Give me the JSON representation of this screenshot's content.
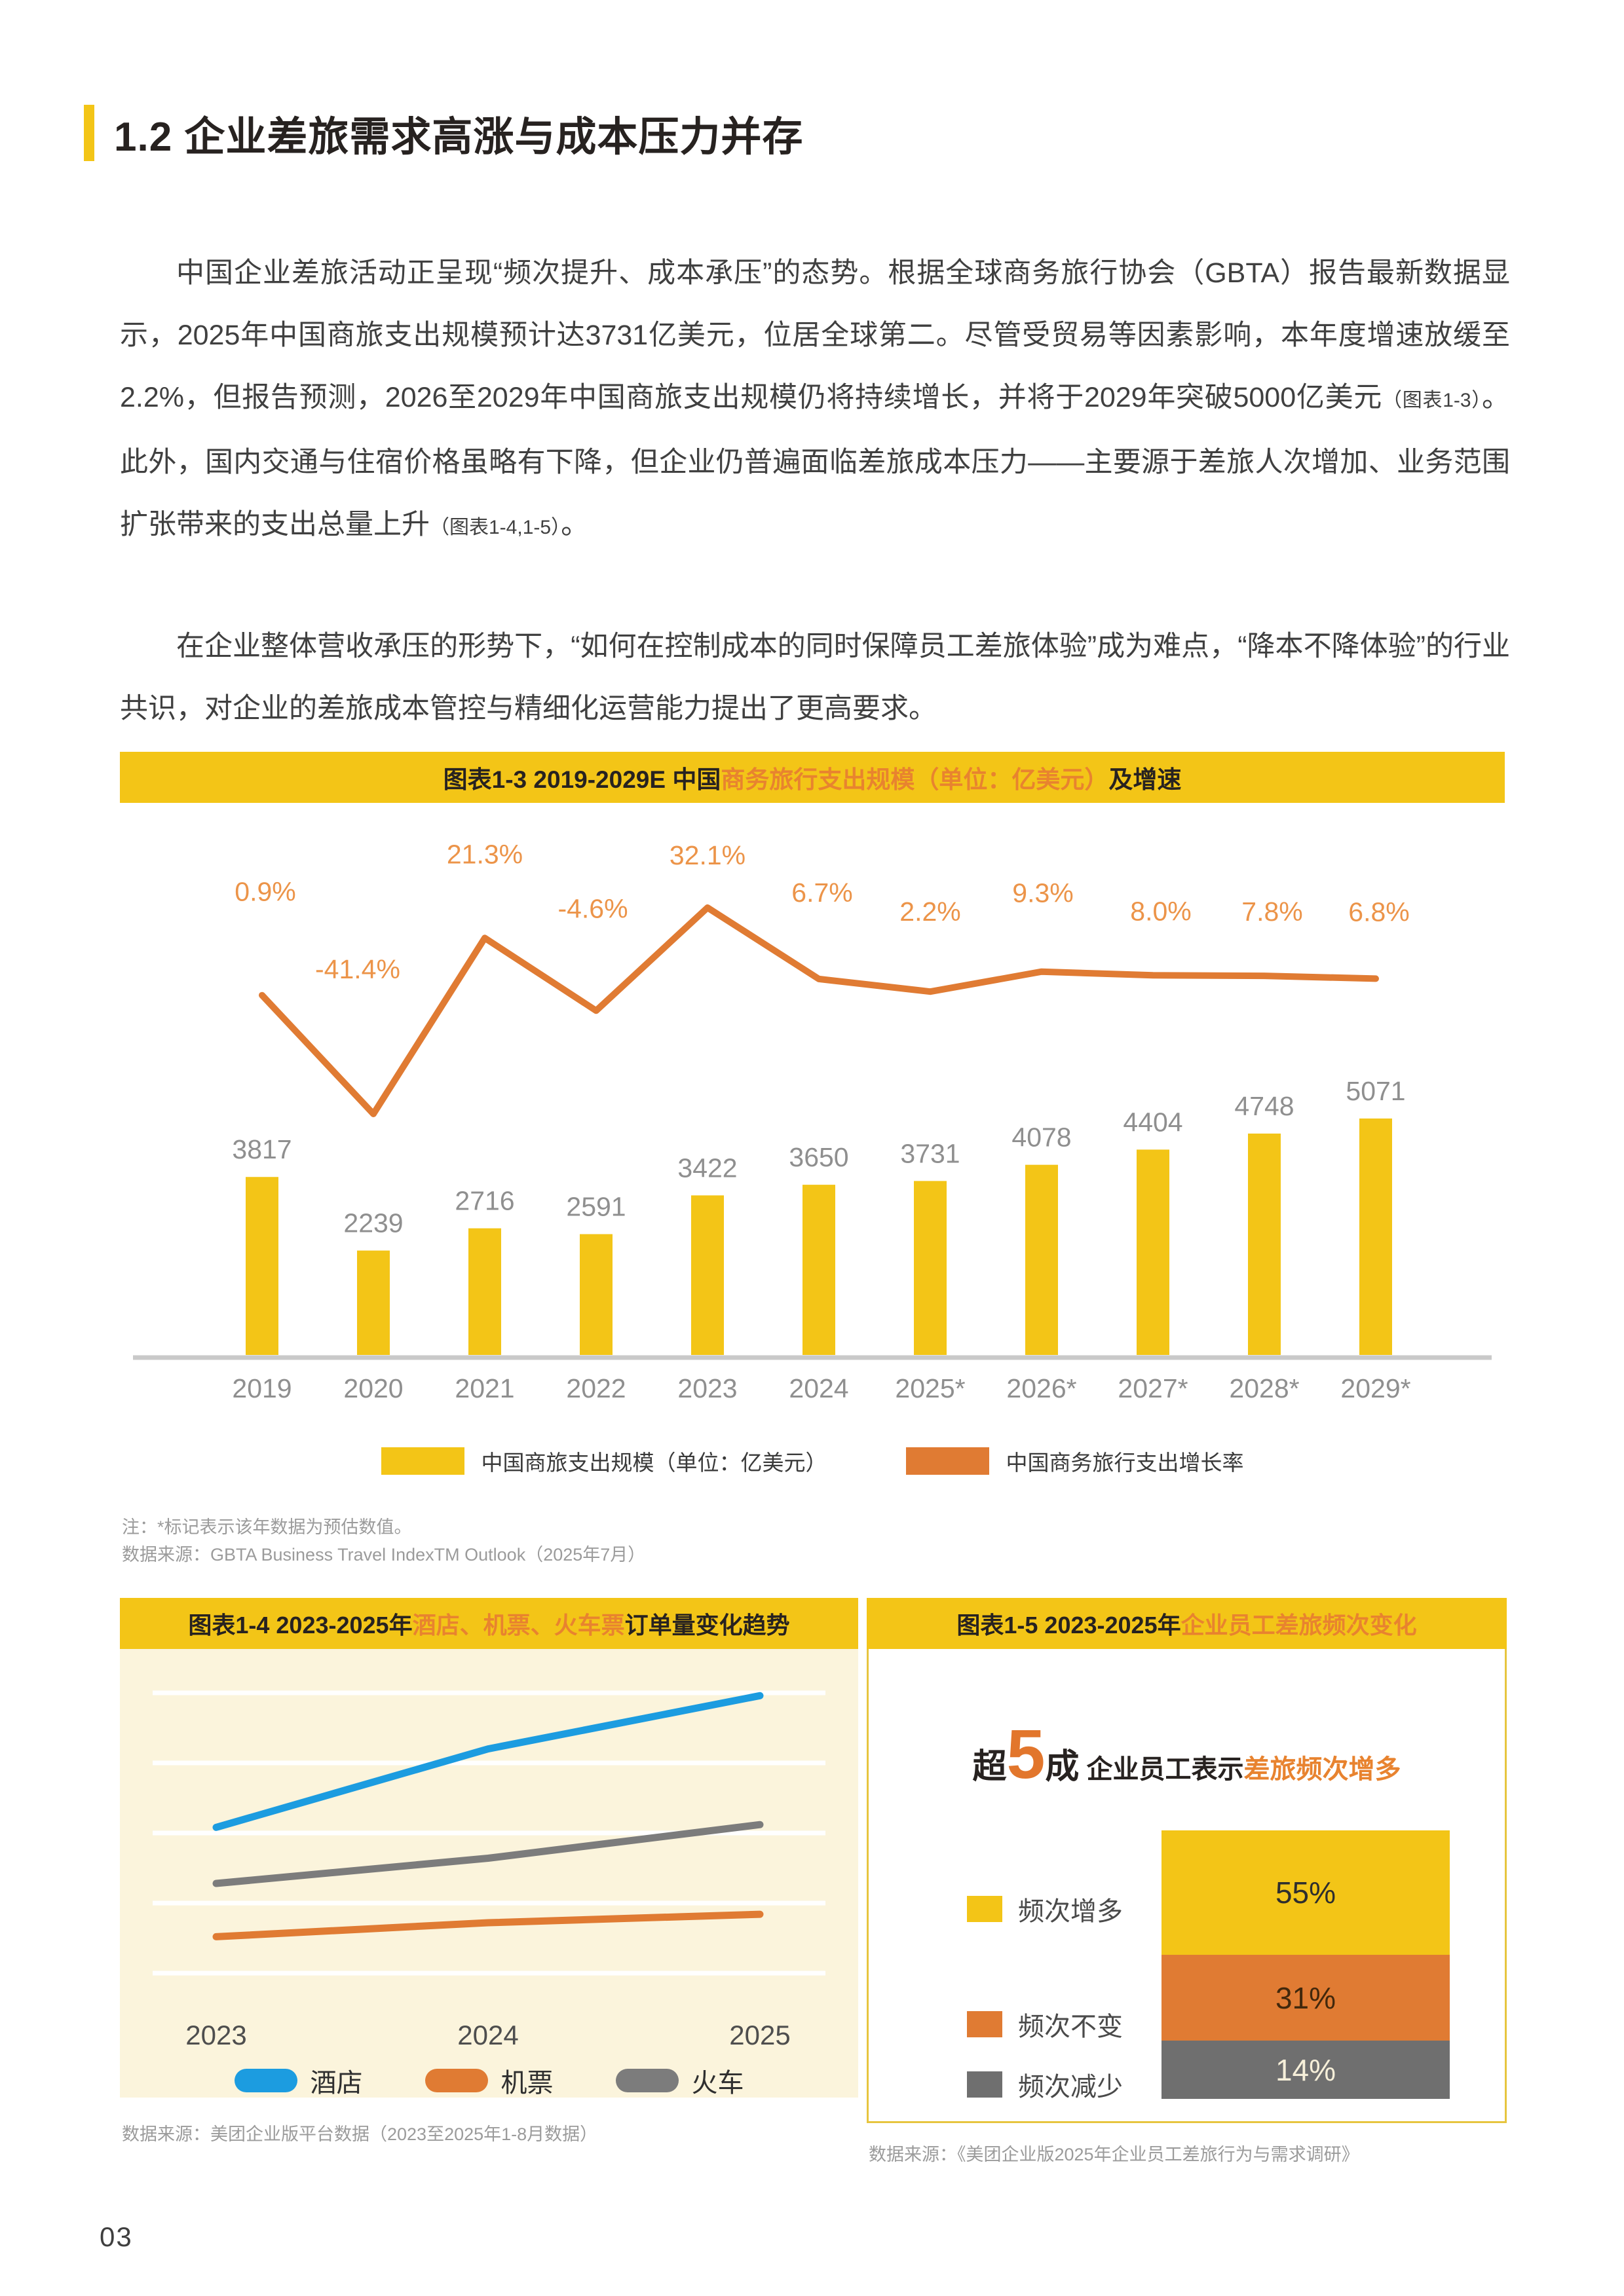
{
  "header": {
    "title": "1.2 企业差旅需求高涨与成本压力并存"
  },
  "paragraphs": {
    "p1_main": "中国企业差旅活动正呈现“频次提升、成本承压”的态势。根据全球商务旅行协会（GBTA）报告最新数据显示，2025年中国商旅支出规模预计达3731亿美元，位居全球第二。尽管受贸易等因素影响，本年度增速放缓至2.2%，但报告预测，2026至2029年中国商旅支出规模仍将持续增长，并将于2029年突破5000亿美元",
    "p1_ref1": "（图表1-3）",
    "p1_mid": "。此外，国内交通与住宿价格虽略有下降，但企业仍普遍面临差旅成本压力——主要源于差旅人次增加、业务范围扩张带来的支出总量上升",
    "p1_ref2": "（图表1-4,1-5）",
    "p1_end": "。",
    "p2": "在企业整体营收承压的形势下，“如何在控制成本的同时保障员工差旅体验”成为难点，“降本不降体验”的行业共识，对企业的差旅成本管控与精细化运营能力提出了更高要求。"
  },
  "chart13": {
    "title_prefix": "图表1-3 2019-2029E 中国",
    "title_highlight": "商务旅行支出规模（单位：亿美元）",
    "title_suffix": "及增速",
    "note": "注：*标记表示该年数据为预估数值。",
    "source": "数据来源：GBTA Business Travel IndexTM Outlook（2025年7月）",
    "legend": [
      {
        "label": "中国商旅支出规模（单位：亿美元）",
        "color": "#F3C517"
      },
      {
        "label": "中国商务旅行支出增长率",
        "color": "#E07B33"
      }
    ]
  },
  "chart14": {
    "title_prefix": "图表1-4 2023-2025年 ",
    "title_highlight": "酒店、机票、火车票",
    "title_suffix": "订单量变化趋势",
    "source": "数据来源：美团企业版平台数据（2023至2025年1-8月数据）"
  },
  "chart15": {
    "title_prefix": "图表1-5 2023-2025年 ",
    "title_highlight": "企业员工差旅频次变化",
    "headline": {
      "prefix": "超",
      "big": "5",
      "unit": "成",
      "mid": " 企业员工表示",
      "highlight": "差旅频次增多"
    },
    "source": "数据来源：《美团企业版2025年企业员工差旅行为与需求调研》"
  },
  "page_footer": {
    "page_number": "03"
  },
  "colors": {
    "brand_yellow": "#F3C517",
    "orange": "#E07B33",
    "orange_label": "#EC9449",
    "header_orange_text": "#E8832F",
    "blue": "#1C9CE0",
    "gray_line": "#7C7C7C",
    "stack_gray": "#6F6F6F",
    "value_gray": "#8F8F8F",
    "cream_bg": "#FBF4DC",
    "panel_border_gold": "#E7C53F"
  },
  "chart_data": [
    {
      "id": "chart13",
      "type": "bar",
      "title": "图表1-3 2019-2029E 中国商务旅行支出规模（单位：亿美元）及增速",
      "categories": [
        "2019",
        "2020",
        "2021",
        "2022",
        "2023",
        "2024",
        "2025*",
        "2026*",
        "2027*",
        "2028*",
        "2029*"
      ],
      "series": [
        {
          "name": "中国商旅支出规模（单位：亿美元）",
          "type": "bar",
          "color": "#F3C517",
          "values": [
            3817,
            2239,
            2716,
            2591,
            3422,
            3650,
            3731,
            4078,
            4404,
            4748,
            5071
          ]
        },
        {
          "name": "中国商务旅行支出增长率",
          "type": "line",
          "color": "#E07B33",
          "unit": "%",
          "values": [
            0.9,
            -41.4,
            21.3,
            -4.6,
            32.1,
            6.7,
            2.2,
            9.3,
            8.0,
            7.8,
            6.8
          ]
        }
      ],
      "legend_position": "bottom",
      "grid": false
    },
    {
      "id": "chart14",
      "type": "line",
      "title": "图表1-4 2023-2025年 酒店、机票、火车票订单量变化趋势",
      "categories": [
        "2023",
        "2024",
        "2025"
      ],
      "normalized": true,
      "series": [
        {
          "name": "酒店",
          "color": "#1C9CE0",
          "values": [
            0.52,
            0.8,
            0.99
          ]
        },
        {
          "name": "机票",
          "color": "#E07B33",
          "values": [
            0.13,
            0.18,
            0.21
          ]
        },
        {
          "name": "火车",
          "color": "#7C7C7C",
          "values": [
            0.32,
            0.41,
            0.53
          ]
        }
      ],
      "legend_position": "bottom",
      "grid": true
    },
    {
      "id": "chart15",
      "type": "stacked-bar",
      "title": "图表1-5 2023-2025年 企业员工差旅频次变化",
      "categories": [
        "企业员工"
      ],
      "series": [
        {
          "name": "频次增多",
          "color": "#F3C517",
          "values": [
            55
          ],
          "label": "55%"
        },
        {
          "name": "频次不变",
          "color": "#E07B33",
          "values": [
            31
          ],
          "label": "31%"
        },
        {
          "name": "频次减少",
          "color": "#6F6F6F",
          "values": [
            14
          ],
          "label": "14%"
        }
      ],
      "legend_position": "left",
      "grid": false
    }
  ]
}
